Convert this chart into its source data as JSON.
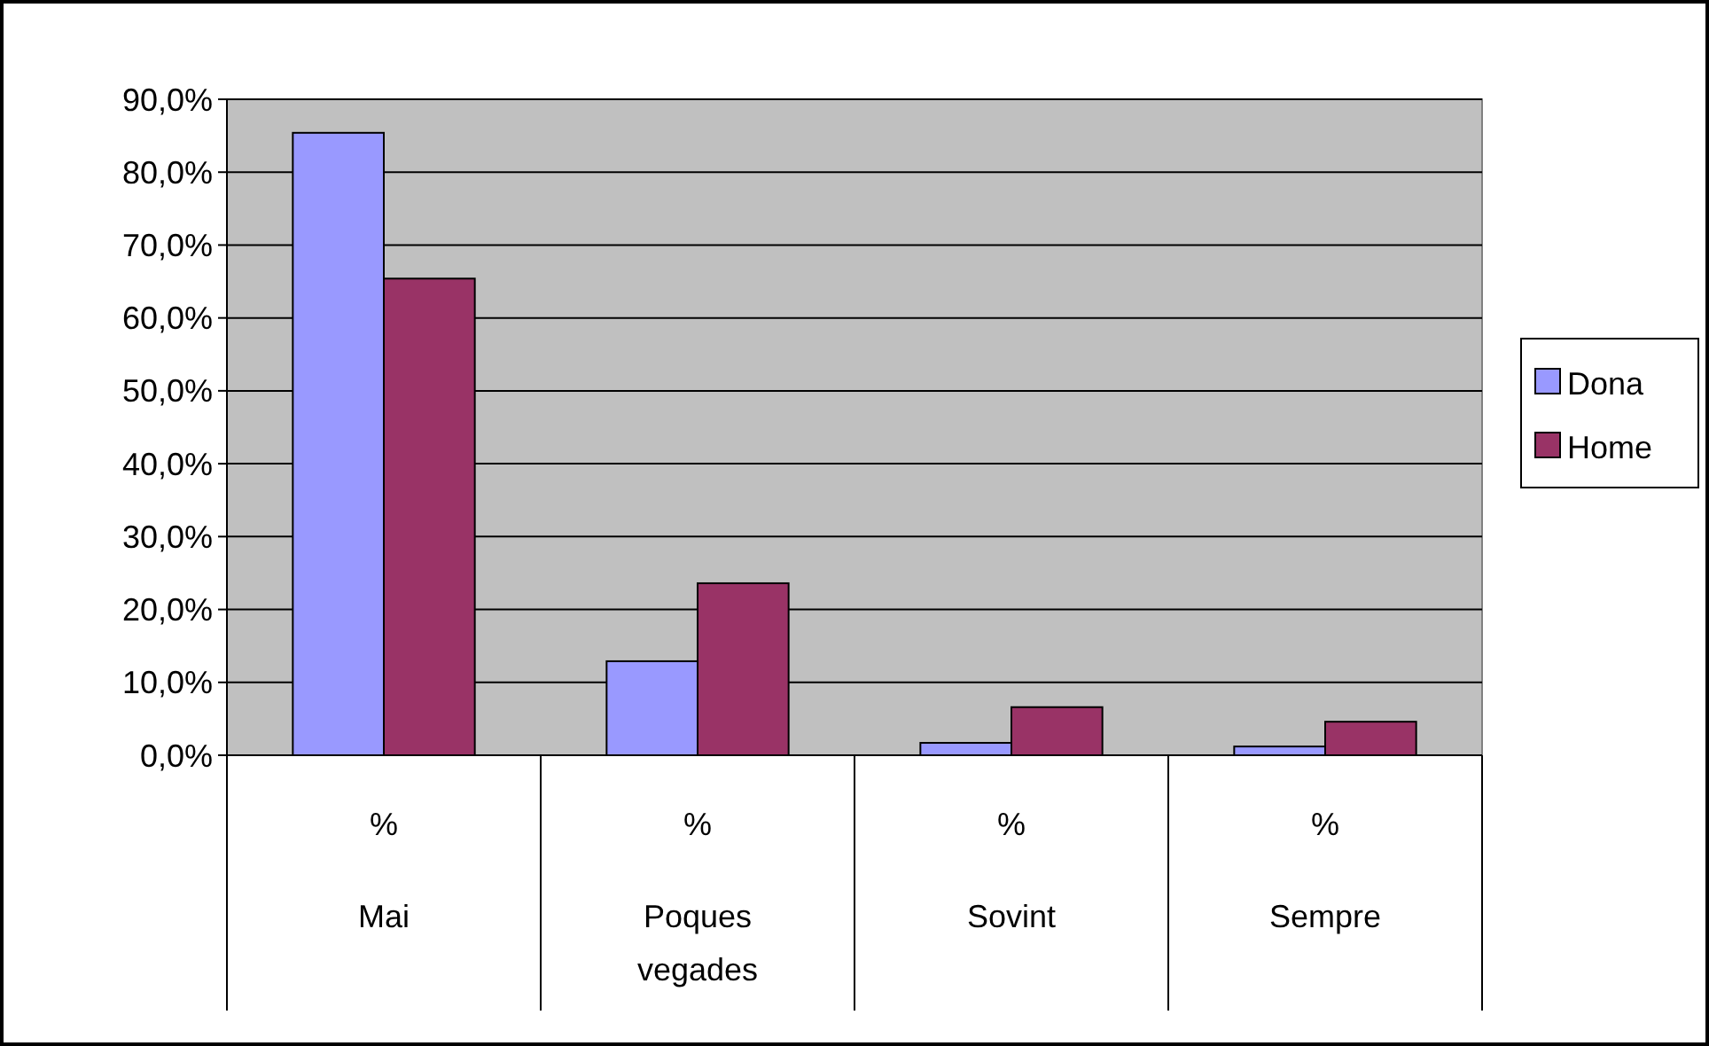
{
  "chart_data": {
    "type": "bar",
    "categories": [
      "%\nMai",
      "%\nPoques vegades",
      "%\nSovint",
      "%\nSempre"
    ],
    "series": [
      {
        "name": "Dona",
        "color": "#9999ff",
        "values": [
          85.4,
          12.9,
          1.7,
          1.2
        ]
      },
      {
        "name": "Home",
        "color": "#993366",
        "values": [
          65.4,
          23.6,
          6.6,
          4.6
        ]
      }
    ],
    "ylim": [
      0,
      90
    ],
    "yticks": [
      {
        "value": 0,
        "label": "0,0%"
      },
      {
        "value": 10,
        "label": "10,0%"
      },
      {
        "value": 20,
        "label": "20,0%"
      },
      {
        "value": 30,
        "label": "30,0%"
      },
      {
        "value": 40,
        "label": "40,0%"
      },
      {
        "value": 50,
        "label": "50,0%"
      },
      {
        "value": 60,
        "label": "60,0%"
      },
      {
        "value": 70,
        "label": "70,0%"
      },
      {
        "value": 80,
        "label": "80,0%"
      },
      {
        "value": 90,
        "label": "90,0%"
      }
    ],
    "grid": "y",
    "legend": "right"
  }
}
